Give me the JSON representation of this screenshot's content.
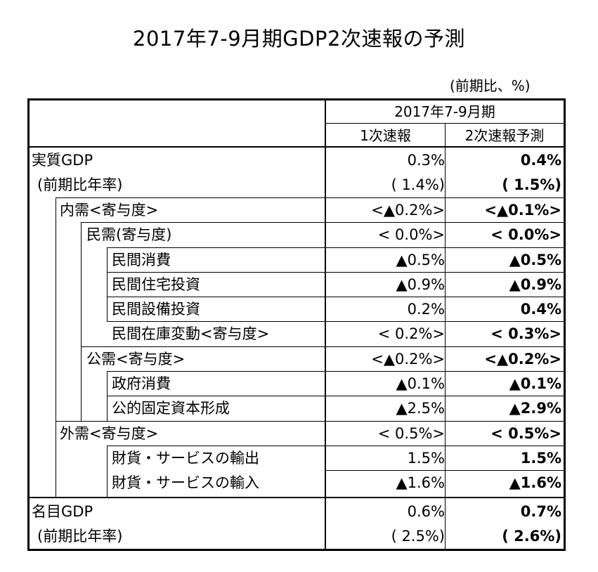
{
  "title": "2017年7-9月期GDP2次速報の予測",
  "unit": "(前期比、%)",
  "header": {
    "period": "2017年7-9月期",
    "col1": "1次速報",
    "col2": "2次速報予測"
  },
  "rows": [
    {
      "label": "実質GDP",
      "v1": "0.3%",
      "v2": "0.4%"
    },
    {
      "label": "(前期比年率)",
      "v1": "( 1.4%)",
      "v2": "( 1.5%)"
    },
    {
      "label": "内需<寄与度>",
      "v1": "<▲0.2%>",
      "v2": "<▲0.1%>"
    },
    {
      "label": "民需(寄与度)",
      "v1": "< 0.0%>",
      "v2": "< 0.0%>"
    },
    {
      "label": "民間消費",
      "v1": "▲0.5%",
      "v2": "▲0.5%"
    },
    {
      "label": "民間住宅投資",
      "v1": "▲0.9%",
      "v2": "▲0.9%"
    },
    {
      "label": "民間設備投資",
      "v1": "0.2%",
      "v2": "0.4%"
    },
    {
      "label": "民間在庫変動<寄与度>",
      "v1": "< 0.2%>",
      "v2": "< 0.3%>"
    },
    {
      "label": "公需<寄与度>",
      "v1": "<▲0.2%>",
      "v2": "<▲0.2%>"
    },
    {
      "label": "政府消費",
      "v1": "▲0.1%",
      "v2": "▲0.1%"
    },
    {
      "label": "公的固定資本形成",
      "v1": "▲2.5%",
      "v2": "▲2.9%"
    },
    {
      "label": "外需<寄与度>",
      "v1": "< 0.5%>",
      "v2": "< 0.5%>"
    },
    {
      "label": "財貨・サービスの輸出",
      "v1": "1.5%",
      "v2": "1.5%"
    },
    {
      "label": "財貨・サービスの輸入",
      "v1": "▲1.6%",
      "v2": "▲1.6%"
    },
    {
      "label": "名目GDP",
      "v1": "0.6%",
      "v2": "0.7%"
    },
    {
      "label": "(前期比年率)",
      "v1": "( 2.5%)",
      "v2": "( 2.6%)"
    }
  ]
}
